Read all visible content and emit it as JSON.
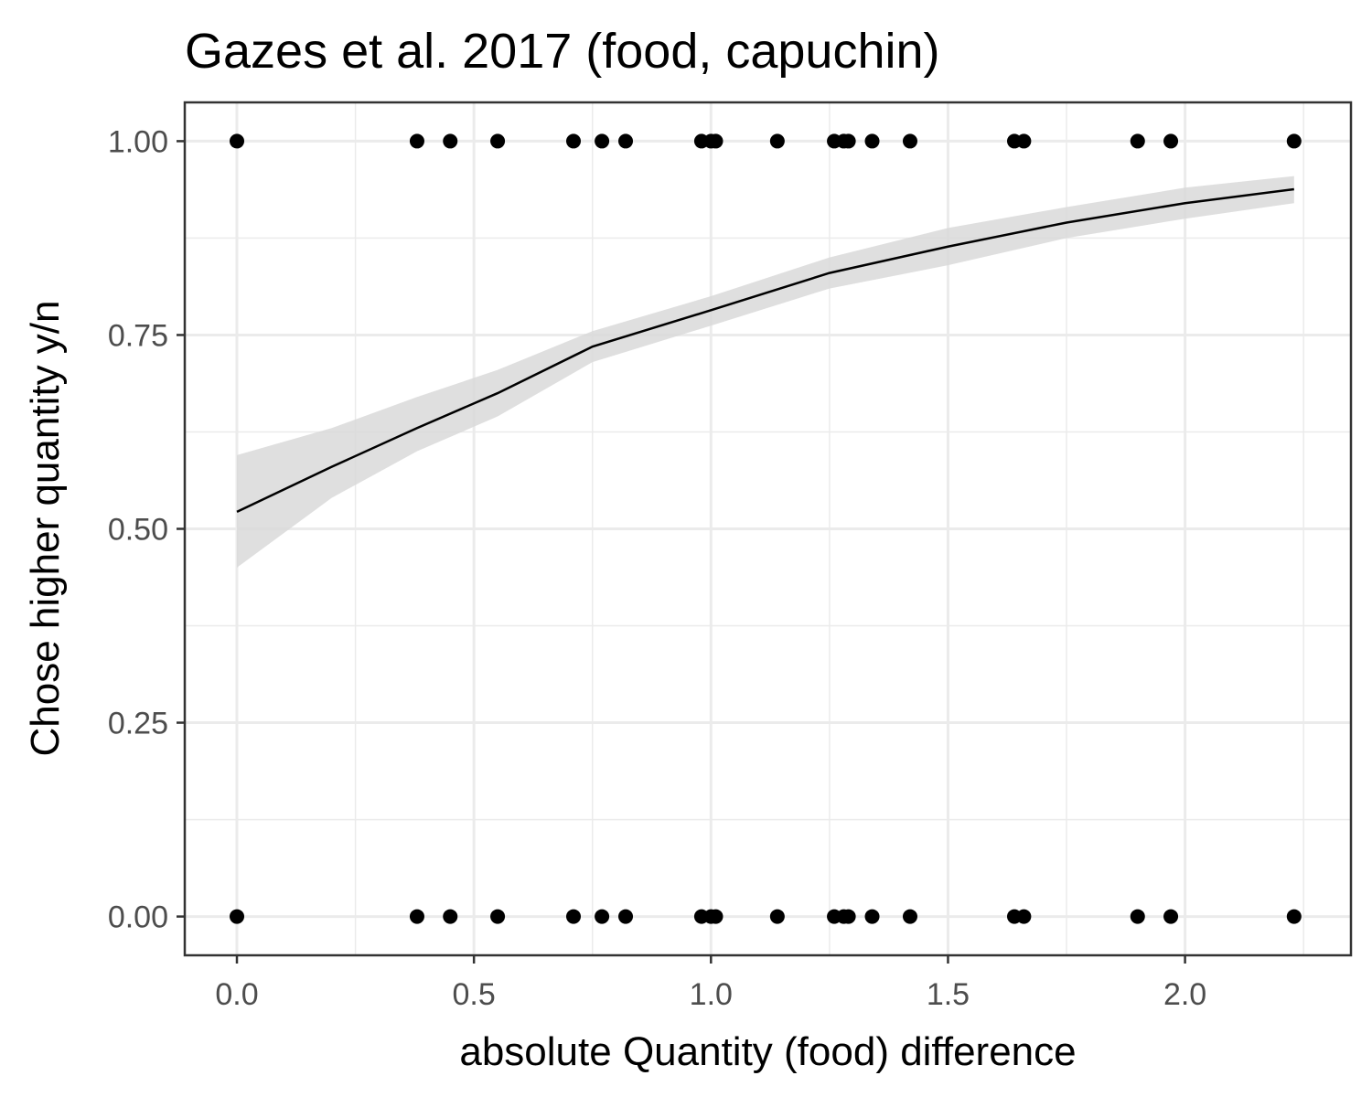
{
  "chart_data": {
    "type": "scatter",
    "title": "Gazes et al. 2017 (food, capuchin)",
    "xlabel": "absolute Quantity (food) difference",
    "ylabel": "Chose higher quantity y/n",
    "xlim": [
      -0.11,
      2.35
    ],
    "ylim": [
      -0.05,
      1.05
    ],
    "x_ticks": [
      0.0,
      0.5,
      1.0,
      1.5,
      2.0
    ],
    "x_tick_labels": [
      "0.0",
      "0.5",
      "1.0",
      "1.5",
      "2.0"
    ],
    "y_ticks": [
      0.0,
      0.25,
      0.5,
      0.75,
      1.0
    ],
    "y_tick_labels": [
      "0.00",
      "0.25",
      "0.50",
      "0.75",
      "1.00"
    ],
    "grid": true,
    "legend": "none",
    "colors": {
      "points": "#000000",
      "fit_line": "#000000",
      "ribbon": "#d9d9d9",
      "grid": "#ebebeb",
      "panel_border": "#333333",
      "tick_label": "#4d4d4d"
    },
    "points": {
      "y1_x": [
        0.0,
        0.38,
        0.45,
        0.55,
        0.71,
        0.77,
        0.82,
        0.98,
        1.0,
        1.01,
        1.14,
        1.26,
        1.28,
        1.29,
        1.34,
        1.42,
        1.64,
        1.66,
        1.9,
        1.97,
        2.23
      ],
      "y0_x": [
        0.0,
        0.38,
        0.45,
        0.55,
        0.71,
        0.77,
        0.82,
        0.98,
        1.0,
        1.01,
        1.14,
        1.26,
        1.28,
        1.29,
        1.34,
        1.42,
        1.64,
        1.66,
        1.9,
        1.97,
        2.23
      ]
    },
    "fit": {
      "x": [
        0.0,
        0.2,
        0.38,
        0.55,
        0.75,
        1.0,
        1.25,
        1.5,
        1.75,
        2.0,
        2.23
      ],
      "y": [
        0.522,
        0.58,
        0.63,
        0.675,
        0.735,
        0.782,
        0.83,
        0.864,
        0.895,
        0.92,
        0.938
      ],
      "lower": [
        0.45,
        0.54,
        0.6,
        0.645,
        0.715,
        0.762,
        0.81,
        0.84,
        0.875,
        0.9,
        0.92
      ],
      "upper": [
        0.595,
        0.63,
        0.67,
        0.705,
        0.755,
        0.8,
        0.85,
        0.888,
        0.915,
        0.94,
        0.955
      ]
    }
  }
}
